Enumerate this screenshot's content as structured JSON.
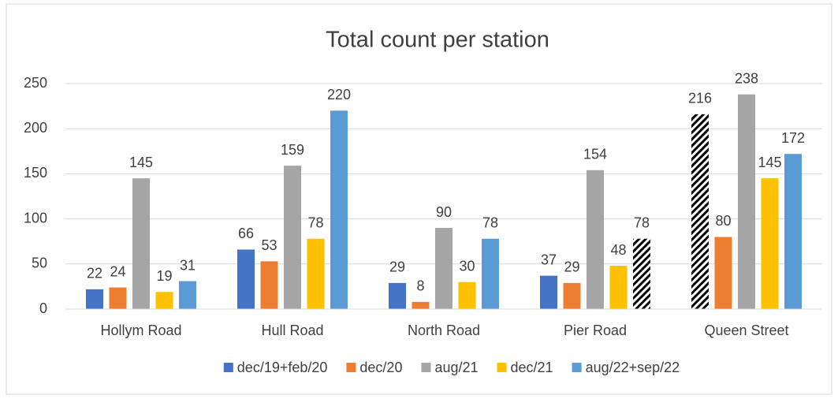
{
  "chart_data": {
    "type": "bar",
    "title": "Total count per station",
    "categories": [
      "Hollym Road",
      "Hull Road",
      "North Road",
      "Pier Road",
      "Queen Street"
    ],
    "series": [
      {
        "name": "dec/19+feb/20",
        "color": "#4472c4",
        "values": [
          22,
          66,
          29,
          37,
          216
        ],
        "hatched_points": [
          4
        ]
      },
      {
        "name": "dec/20",
        "color": "#ed7d31",
        "values": [
          24,
          53,
          8,
          29,
          80
        ]
      },
      {
        "name": "aug/21",
        "color": "#a5a5a5",
        "values": [
          145,
          159,
          90,
          154,
          238
        ]
      },
      {
        "name": "dec/21",
        "color": "#ffc000",
        "values": [
          19,
          78,
          30,
          48,
          145
        ]
      },
      {
        "name": "aug/22+sep/22",
        "color": "#5b9bd5",
        "values": [
          31,
          220,
          78,
          78,
          172
        ],
        "hatched_points": [
          3
        ]
      }
    ],
    "ylim": [
      0,
      250
    ],
    "yticks": [
      0,
      50,
      100,
      150,
      200,
      250
    ],
    "grid": true,
    "legend": "bottom"
  }
}
